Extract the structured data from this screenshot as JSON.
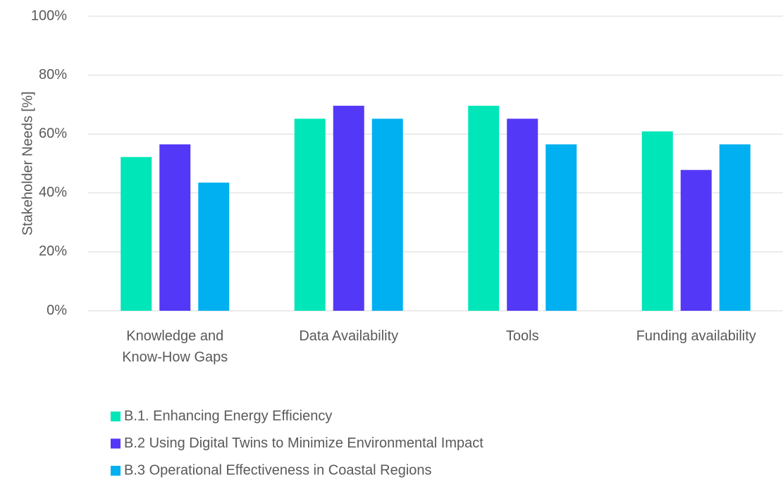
{
  "chart_data": {
    "type": "bar",
    "ylabel": "Stakeholder Needs [%]",
    "categories": [
      "Knowledge and\nKnow-How Gaps",
      "Data Availability",
      "Tools",
      "Funding availability"
    ],
    "series": [
      {
        "name": "B.1. Enhancing Energy Efficiency",
        "color": "#00e6b8",
        "values": [
          52.2,
          65.2,
          69.6,
          60.9
        ]
      },
      {
        "name": "B.2 Using Digital Twins to Minimize Environmental Impact",
        "color": "#5438f8",
        "values": [
          56.5,
          69.6,
          65.2,
          47.8
        ]
      },
      {
        "name": "B.3 Operational Effectiveness in Coastal Regions",
        "color": "#00b0f0",
        "values": [
          43.5,
          65.2,
          56.5,
          56.5
        ]
      }
    ],
    "ylim": [
      0,
      100
    ],
    "yticks": [
      {
        "value": 0,
        "label": "0%"
      },
      {
        "value": 20,
        "label": "20%"
      },
      {
        "value": 40,
        "label": "40%"
      },
      {
        "value": 60,
        "label": "60%"
      },
      {
        "value": 80,
        "label": "80%"
      },
      {
        "value": 100,
        "label": "100%"
      }
    ],
    "grid": true,
    "legend": "bottom"
  }
}
